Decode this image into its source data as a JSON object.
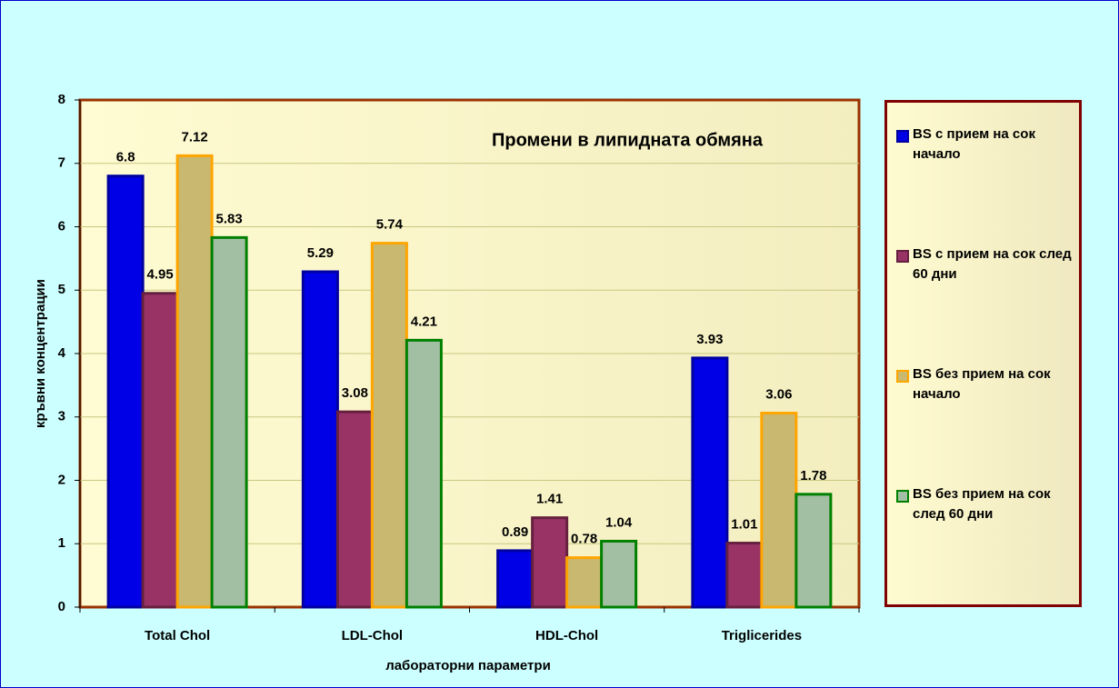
{
  "chart_data": {
    "type": "bar",
    "title": "Промени в липидната обмяна",
    "x_label": "лабораторни параметри",
    "y_label": "кръвни концентрации",
    "categories": [
      "Total Chol",
      "LDL-Chol",
      "HDL-Chol",
      "Triglicerides"
    ],
    "series": [
      {
        "name": "BS с прием на сок начало",
        "color": "#0000e6",
        "edgecolor": "#0000a0",
        "values": [
          6.8,
          5.29,
          0.89,
          3.93
        ]
      },
      {
        "name": "BS с прием на сок след 60 дни",
        "color": "#993366",
        "edgecolor": "#66203f",
        "values": [
          4.95,
          3.08,
          1.41,
          1.01
        ]
      },
      {
        "name": "BS без прием на сок начало",
        "color": "#c9b870",
        "edgecolor": "#ffa500",
        "values": [
          7.12,
          5.74,
          0.78,
          3.06
        ]
      },
      {
        "name": "BS без прием на сок след 60 дни",
        "color": "#a3bfa3",
        "edgecolor": "#008000",
        "values": [
          5.83,
          4.21,
          1.04,
          1.78
        ]
      }
    ],
    "ylim": [
      0,
      8
    ],
    "yticks": [
      0,
      1,
      2,
      3,
      4,
      5,
      6,
      7,
      8
    ],
    "grid": true,
    "legend": "right"
  }
}
